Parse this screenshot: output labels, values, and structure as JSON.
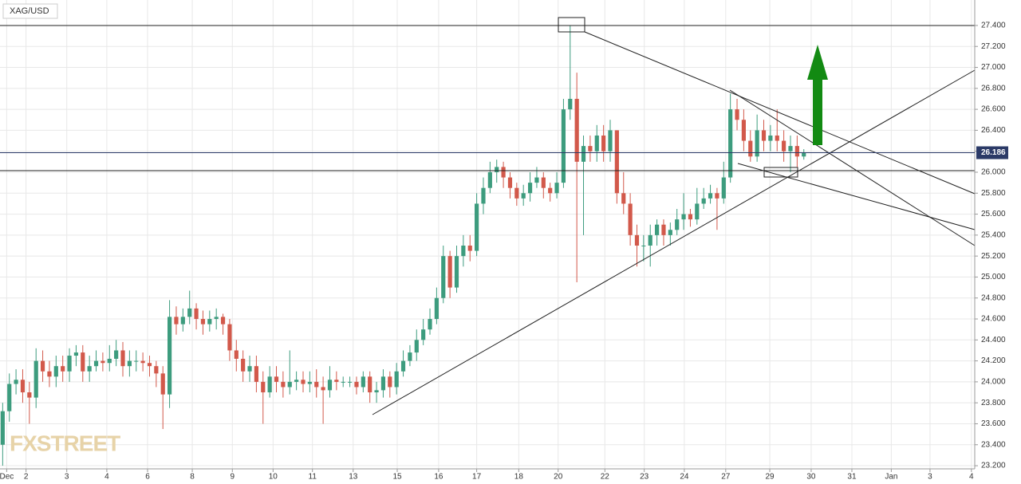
{
  "chart_data": {
    "type": "candlestick",
    "symbol": "XAG/USD",
    "watermark": "FXSTREET",
    "up_color": "#3d9c7e",
    "down_color": "#d2594b",
    "grid": true,
    "last_price": 26.186,
    "xlim": [
      -0.4,
      145.6
    ],
    "ylim": [
      23.17,
      27.643
    ],
    "xticks": [
      {
        "value": 0.6,
        "label": "Dec"
      },
      {
        "value": 3.5,
        "label": "2"
      },
      {
        "value": 9.6,
        "label": "3"
      },
      {
        "value": 15.6,
        "label": "4"
      },
      {
        "value": 21.7,
        "label": "6"
      },
      {
        "value": 28.4,
        "label": "8"
      },
      {
        "value": 34.4,
        "label": "9"
      },
      {
        "value": 40.5,
        "label": "10"
      },
      {
        "value": 46.4,
        "label": "11"
      },
      {
        "value": 52.5,
        "label": "13"
      },
      {
        "value": 59.1,
        "label": "15"
      },
      {
        "value": 65.3,
        "label": "16"
      },
      {
        "value": 71.0,
        "label": "17"
      },
      {
        "value": 77.3,
        "label": "18"
      },
      {
        "value": 83.2,
        "label": "20"
      },
      {
        "value": 90.2,
        "label": "22"
      },
      {
        "value": 96.1,
        "label": "23"
      },
      {
        "value": 102.1,
        "label": "24"
      },
      {
        "value": 108.3,
        "label": "27"
      },
      {
        "value": 114.9,
        "label": "29"
      },
      {
        "value": 121.1,
        "label": "30"
      },
      {
        "value": 127.2,
        "label": "31"
      },
      {
        "value": 133.1,
        "label": "Jan"
      },
      {
        "value": 138.9,
        "label": "3"
      },
      {
        "value": 145.1,
        "label": "4"
      }
    ],
    "yticks": [
      {
        "value": 23.2,
        "label": "23.200"
      },
      {
        "value": 23.4,
        "label": "23.400"
      },
      {
        "value": 23.6,
        "label": "23.600"
      },
      {
        "value": 23.8,
        "label": "23.800"
      },
      {
        "value": 24.0,
        "label": "24.000"
      },
      {
        "value": 24.2,
        "label": "24.200"
      },
      {
        "value": 24.4,
        "label": "24.400"
      },
      {
        "value": 24.6,
        "label": "24.600"
      },
      {
        "value": 24.8,
        "label": "24.800"
      },
      {
        "value": 25.0,
        "label": "25.000"
      },
      {
        "value": 25.2,
        "label": "25.200"
      },
      {
        "value": 25.4,
        "label": "25.400"
      },
      {
        "value": 25.6,
        "label": "25.600"
      },
      {
        "value": 25.8,
        "label": "25.800"
      },
      {
        "value": 26.0,
        "label": "26.000"
      },
      {
        "value": 26.2,
        "label": "26.200"
      },
      {
        "value": 26.4,
        "label": "26.400"
      },
      {
        "value": 26.6,
        "label": "26.600"
      },
      {
        "value": 26.8,
        "label": "26.800"
      },
      {
        "value": 27.0,
        "label": "27.000"
      },
      {
        "value": 27.2,
        "label": "27.200"
      },
      {
        "value": 27.4,
        "label": "27.400"
      }
    ],
    "x": [
      0,
      1,
      2,
      3,
      4,
      5,
      6,
      7,
      8,
      9,
      10,
      11,
      12,
      13,
      14,
      15,
      16,
      17,
      18,
      19,
      20,
      21,
      22,
      23,
      24,
      25,
      26,
      27,
      28,
      29,
      30,
      31,
      32,
      33,
      34,
      35,
      36,
      37,
      38,
      39,
      40,
      41,
      42,
      43,
      44,
      45,
      46,
      47,
      48,
      49,
      50,
      51,
      52,
      53,
      54,
      55,
      56,
      57,
      58,
      59,
      60,
      61,
      62,
      63,
      64,
      65,
      66,
      67,
      68,
      69,
      70,
      71,
      72,
      73,
      74,
      75,
      76,
      77,
      78,
      79,
      80,
      81,
      82,
      83,
      84,
      85,
      86,
      87,
      88,
      89,
      90,
      91,
      92,
      93,
      94,
      95,
      96,
      97,
      98,
      99,
      100,
      101,
      102,
      103,
      104,
      105,
      106,
      107,
      108,
      109,
      110,
      111,
      112,
      113,
      114,
      115,
      116,
      117,
      118,
      119,
      120
    ],
    "open": [
      23.4,
      23.72,
      23.98,
      24.02,
      23.9,
      23.85,
      24.2,
      24.1,
      24.05,
      24.15,
      24.1,
      24.25,
      24.28,
      24.1,
      24.15,
      24.2,
      24.18,
      24.22,
      24.3,
      24.15,
      24.2,
      24.2,
      24.18,
      24.15,
      24.08,
      23.88,
      24.62,
      24.55,
      24.62,
      24.7,
      24.6,
      24.55,
      24.6,
      24.62,
      24.55,
      24.3,
      24.22,
      24.1,
      24.15,
      24.0,
      23.9,
      24.05,
      24.0,
      23.95,
      24.0,
      24.02,
      23.98,
      24.0,
      23.95,
      23.92,
      24.02,
      24.0,
      24.0,
      24.0,
      23.95,
      24.05,
      23.9,
      23.92,
      24.05,
      23.95,
      24.1,
      24.2,
      24.28,
      24.4,
      24.5,
      24.6,
      24.8,
      25.2,
      24.9,
      25.2,
      25.3,
      25.25,
      25.7,
      25.85,
      26.0,
      26.05,
      25.95,
      25.85,
      25.75,
      25.8,
      25.9,
      25.95,
      25.85,
      25.8,
      25.9,
      26.6,
      26.7,
      26.1,
      26.25,
      26.2,
      26.35,
      26.2,
      26.4,
      25.8,
      25.7,
      25.4,
      25.3,
      25.3,
      25.4,
      25.5,
      25.4,
      25.45,
      25.55,
      25.6,
      25.55,
      25.7,
      25.75,
      25.8,
      25.75,
      25.95,
      26.6,
      26.5,
      26.3,
      26.15,
      26.4,
      26.3,
      26.35,
      26.3,
      26.2,
      26.25,
      26.15
    ],
    "high": [
      23.8,
      24.08,
      24.12,
      24.12,
      24.0,
      24.32,
      24.3,
      24.2,
      24.25,
      24.25,
      24.32,
      24.35,
      24.35,
      24.25,
      24.3,
      24.28,
      24.35,
      24.4,
      24.38,
      24.3,
      24.3,
      24.28,
      24.25,
      24.2,
      24.15,
      24.78,
      24.72,
      24.7,
      24.87,
      24.75,
      24.68,
      24.68,
      24.7,
      24.65,
      24.6,
      24.4,
      24.3,
      24.25,
      24.25,
      24.1,
      24.15,
      24.15,
      24.1,
      24.3,
      24.1,
      24.1,
      24.1,
      24.12,
      24.05,
      24.15,
      24.1,
      24.05,
      24.05,
      24.05,
      24.1,
      24.1,
      24.0,
      24.12,
      24.1,
      24.18,
      24.3,
      24.35,
      24.5,
      24.6,
      24.7,
      24.9,
      25.3,
      25.25,
      25.3,
      25.4,
      25.4,
      25.8,
      25.95,
      26.1,
      26.12,
      26.1,
      26.0,
      25.9,
      25.88,
      26.0,
      26.05,
      26.0,
      25.9,
      26.0,
      26.7,
      27.4,
      26.95,
      26.35,
      26.35,
      26.45,
      26.45,
      26.5,
      26.4,
      26.0,
      25.8,
      25.5,
      25.4,
      25.5,
      25.55,
      25.55,
      25.52,
      25.65,
      25.8,
      25.65,
      25.85,
      25.85,
      25.88,
      25.85,
      26.1,
      26.75,
      26.7,
      26.6,
      26.4,
      26.55,
      26.5,
      26.45,
      26.6,
      26.4,
      26.35,
      26.35,
      26.22
    ],
    "low": [
      23.2,
      23.62,
      23.88,
      23.8,
      23.6,
      23.75,
      24.0,
      23.95,
      23.95,
      24.0,
      24.0,
      24.15,
      24.0,
      24.0,
      24.1,
      24.1,
      24.1,
      24.15,
      24.05,
      24.05,
      24.1,
      24.1,
      24.05,
      23.95,
      23.55,
      23.75,
      24.45,
      24.48,
      24.55,
      24.5,
      24.45,
      24.48,
      24.5,
      24.45,
      24.2,
      24.1,
      24.0,
      24.0,
      23.9,
      23.6,
      23.85,
      23.9,
      23.85,
      23.88,
      23.92,
      23.9,
      23.9,
      23.85,
      23.6,
      23.85,
      23.92,
      23.95,
      23.95,
      23.88,
      23.9,
      23.8,
      23.8,
      23.85,
      23.85,
      23.88,
      24.05,
      24.15,
      24.2,
      24.35,
      24.45,
      24.55,
      24.75,
      24.8,
      24.85,
      25.1,
      25.15,
      25.2,
      25.6,
      25.8,
      25.9,
      25.85,
      25.75,
      25.68,
      25.68,
      25.72,
      25.85,
      25.75,
      25.72,
      25.75,
      25.85,
      26.5,
      24.95,
      25.4,
      26.1,
      26.1,
      26.1,
      26.1,
      25.7,
      25.6,
      25.3,
      25.1,
      25.15,
      25.1,
      25.3,
      25.3,
      25.3,
      25.4,
      25.45,
      25.48,
      25.5,
      25.65,
      25.7,
      25.45,
      25.7,
      25.9,
      26.4,
      26.2,
      26.1,
      26.1,
      26.2,
      26.2,
      26.2,
      26.1,
      26.0,
      26.05,
      26.12
    ],
    "close": [
      23.72,
      23.98,
      24.02,
      23.9,
      23.85,
      24.2,
      24.1,
      24.05,
      24.15,
      24.1,
      24.25,
      24.28,
      24.1,
      24.15,
      24.2,
      24.18,
      24.22,
      24.3,
      24.15,
      24.2,
      24.2,
      24.18,
      24.15,
      24.08,
      23.88,
      24.62,
      24.55,
      24.62,
      24.7,
      24.6,
      24.55,
      24.6,
      24.62,
      24.55,
      24.3,
      24.22,
      24.1,
      24.15,
      24.0,
      23.9,
      24.05,
      24.0,
      23.95,
      24.0,
      24.02,
      23.98,
      24.0,
      23.95,
      23.92,
      24.02,
      24.0,
      24.0,
      24.0,
      23.95,
      24.05,
      23.9,
      23.92,
      24.05,
      23.95,
      24.1,
      24.2,
      24.28,
      24.4,
      24.5,
      24.6,
      24.8,
      25.2,
      24.9,
      25.2,
      25.3,
      25.25,
      25.7,
      25.85,
      26.0,
      26.05,
      25.95,
      25.85,
      25.75,
      25.8,
      25.9,
      25.95,
      25.85,
      25.8,
      25.9,
      26.6,
      26.7,
      26.1,
      26.25,
      26.2,
      26.35,
      26.2,
      26.4,
      25.8,
      25.7,
      25.4,
      25.3,
      25.3,
      25.4,
      25.5,
      25.4,
      25.45,
      25.55,
      25.6,
      25.55,
      25.7,
      25.75,
      25.8,
      25.75,
      25.95,
      26.6,
      26.5,
      26.3,
      26.15,
      26.4,
      26.3,
      26.35,
      26.3,
      26.2,
      26.25,
      26.15,
      26.19
    ]
  }
}
